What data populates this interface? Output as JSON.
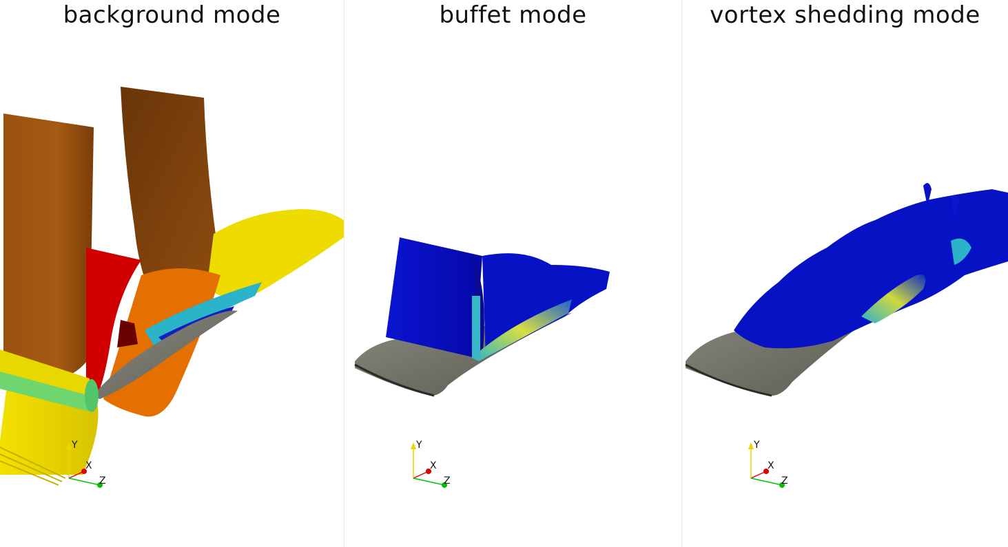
{
  "panels": [
    {
      "title": "background mode",
      "axes": {
        "x": "X",
        "y": "Y",
        "z": "Z"
      }
    },
    {
      "title": "buffet mode",
      "axes": {
        "x": "X",
        "y": "Y",
        "z": "Z"
      }
    },
    {
      "title": "vortex shedding mode",
      "axes": {
        "x": "X",
        "y": "Y",
        "z": "Z"
      }
    }
  ],
  "colors": {
    "airfoil": "#76756b",
    "brown_surface": "#8a4a12",
    "red_surface": "#d40000",
    "orange_surface": "#e06a00",
    "yellow_surface": "#e6d200",
    "green_surface": "#6fd66f",
    "blue_surface": "#0a10c8",
    "axis_x": "#e00000",
    "axis_y": "#e6d600",
    "axis_z": "#00c000"
  }
}
